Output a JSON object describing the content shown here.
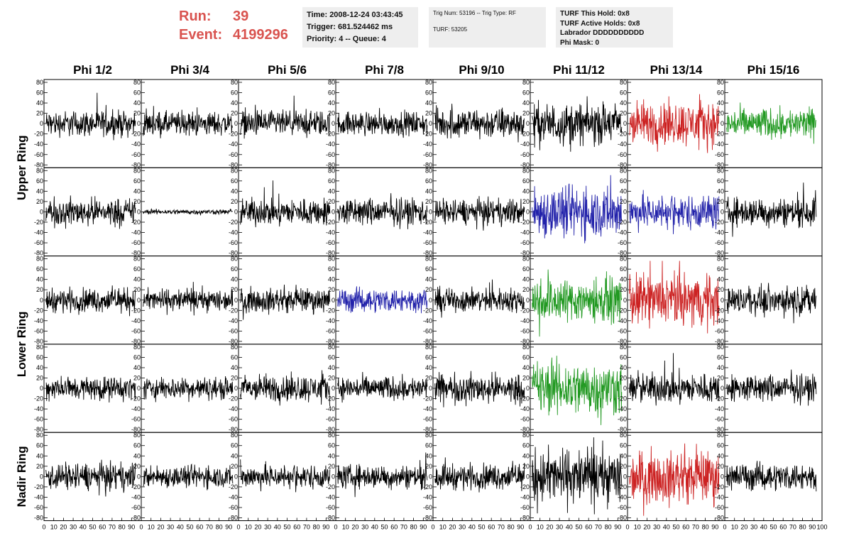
{
  "header": {
    "run_label": "Run:",
    "run_value": "39",
    "event_label": "Event:",
    "event_value": "4199296",
    "time": "Time: 2008-12-24 03:43:45",
    "trigger": "Trigger: 681.524462 ms",
    "priority": "Priority: 4 -- Queue: 4",
    "trig_num": "Trig Num: 53196 -- Trig Type: RF",
    "turf": "TURF: 53205",
    "turf_this_hold": "TURF This Hold: 0x8",
    "turf_active_holds": "TURF Active Holds: 0x8",
    "labrador": "Labrador DDDDDDDDDD",
    "phi_mask": "Phi Mask: 0"
  },
  "colors": {
    "black": "#000000",
    "red": "#cc2222",
    "blue": "#2222aa",
    "green": "#229922",
    "header_red": "#d9534f"
  },
  "chart_data": {
    "type": "line",
    "columns": [
      "Phi 1/2",
      "Phi 3/4",
      "Phi 5/6",
      "Phi 7/8",
      "Phi 9/10",
      "Phi 11/12",
      "Phi 13/14",
      "Phi 15/16"
    ],
    "ring_labels": [
      "Upper Ring",
      "Lower Ring",
      "Nadir Ring"
    ],
    "ylim": [
      -80,
      80
    ],
    "yticks": [
      -80,
      -60,
      -40,
      -20,
      0,
      20,
      40,
      60,
      80
    ],
    "xlim": [
      0,
      100
    ],
    "xticks": [
      0,
      10,
      20,
      30,
      40,
      50,
      60,
      70,
      80,
      90,
      100
    ],
    "panels": [
      {
        "row": 0,
        "col": 0,
        "color": "black",
        "amp": 15
      },
      {
        "row": 0,
        "col": 1,
        "color": "black",
        "amp": 14
      },
      {
        "row": 0,
        "col": 2,
        "color": "black",
        "amp": 15
      },
      {
        "row": 0,
        "col": 3,
        "color": "black",
        "amp": 14
      },
      {
        "row": 0,
        "col": 4,
        "color": "black",
        "amp": 18
      },
      {
        "row": 0,
        "col": 5,
        "color": "black",
        "amp": 24
      },
      {
        "row": 0,
        "col": 6,
        "color": "red",
        "amp": 26
      },
      {
        "row": 0,
        "col": 7,
        "color": "green",
        "amp": 18
      },
      {
        "row": 1,
        "col": 0,
        "color": "black",
        "amp": 16
      },
      {
        "row": 1,
        "col": 1,
        "color": "black",
        "amp": 3
      },
      {
        "row": 1,
        "col": 2,
        "color": "black",
        "amp": 16
      },
      {
        "row": 1,
        "col": 3,
        "color": "black",
        "amp": 16
      },
      {
        "row": 1,
        "col": 4,
        "color": "black",
        "amp": 15
      },
      {
        "row": 1,
        "col": 5,
        "color": "blue",
        "amp": 30
      },
      {
        "row": 1,
        "col": 6,
        "color": "blue",
        "amp": 20
      },
      {
        "row": 1,
        "col": 7,
        "color": "black",
        "amp": 17
      },
      {
        "row": 2,
        "col": 0,
        "color": "black",
        "amp": 14
      },
      {
        "row": 2,
        "col": 1,
        "color": "black",
        "amp": 13
      },
      {
        "row": 2,
        "col": 2,
        "color": "black",
        "amp": 14
      },
      {
        "row": 2,
        "col": 3,
        "color": "blue",
        "amp": 14
      },
      {
        "row": 2,
        "col": 4,
        "color": "black",
        "amp": 14
      },
      {
        "row": 2,
        "col": 5,
        "color": "green",
        "amp": 26
      },
      {
        "row": 2,
        "col": 6,
        "color": "red",
        "amp": 30
      },
      {
        "row": 2,
        "col": 7,
        "color": "black",
        "amp": 16
      },
      {
        "row": 3,
        "col": 0,
        "color": "black",
        "amp": 14
      },
      {
        "row": 3,
        "col": 1,
        "color": "black",
        "amp": 13
      },
      {
        "row": 3,
        "col": 2,
        "color": "black",
        "amp": 16
      },
      {
        "row": 3,
        "col": 3,
        "color": "black",
        "amp": 14
      },
      {
        "row": 3,
        "col": 4,
        "color": "black",
        "amp": 17
      },
      {
        "row": 3,
        "col": 5,
        "color": "green",
        "amp": 32
      },
      {
        "row": 3,
        "col": 6,
        "color": "black",
        "amp": 18
      },
      {
        "row": 3,
        "col": 7,
        "color": "black",
        "amp": 16
      },
      {
        "row": 4,
        "col": 0,
        "color": "black",
        "amp": 16
      },
      {
        "row": 4,
        "col": 1,
        "color": "black",
        "amp": 13
      },
      {
        "row": 4,
        "col": 2,
        "color": "black",
        "amp": 14
      },
      {
        "row": 4,
        "col": 3,
        "color": "black",
        "amp": 14
      },
      {
        "row": 4,
        "col": 4,
        "color": "black",
        "amp": 15
      },
      {
        "row": 4,
        "col": 5,
        "color": "black",
        "amp": 32
      },
      {
        "row": 4,
        "col": 6,
        "color": "red",
        "amp": 30
      },
      {
        "row": 4,
        "col": 7,
        "color": "black",
        "amp": 16
      }
    ]
  }
}
